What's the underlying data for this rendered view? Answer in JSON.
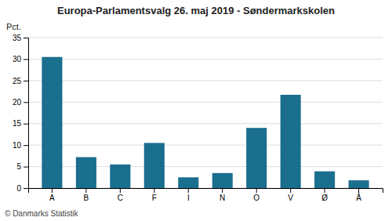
{
  "chart_data": {
    "type": "bar",
    "title": "Europa-Parlamentsvalg 26. maj 2019 - Søndermarkskolen",
    "categories": [
      "A",
      "B",
      "C",
      "F",
      "I",
      "N",
      "O",
      "V",
      "Ø",
      "Å"
    ],
    "values": [
      30.5,
      7.2,
      5.5,
      10.5,
      2.5,
      3.5,
      14.0,
      21.7,
      3.9,
      1.8
    ],
    "color": "#1a6e8e",
    "ylabel": "Pct.",
    "ylim": [
      0,
      35
    ],
    "yticks": [
      0,
      5,
      10,
      15,
      20,
      25,
      30,
      35
    ],
    "grid": true,
    "footer": "© Danmarks Statistik"
  }
}
